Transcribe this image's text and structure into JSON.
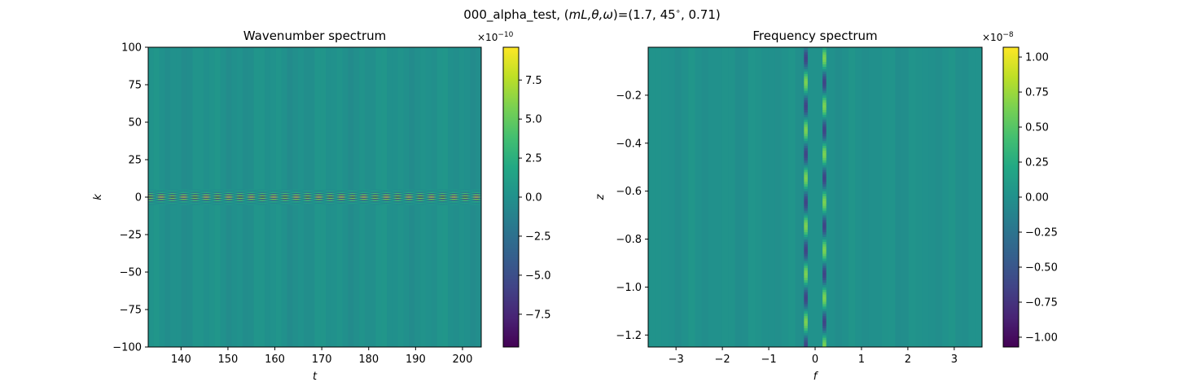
{
  "figure": {
    "suptitle": "000_alpha_test, (mL,θ,ω)=(1.7, 45°, 0.71)",
    "suptitle_prefix": "000_alpha_test, (",
    "suptitle_vars": "mL,θ,ω",
    "suptitle_suffix": ")=(1.7, 45",
    "suptitle_degree": "∘",
    "suptitle_tail": ", 0.71)"
  },
  "chart_data": [
    {
      "type": "heatmap",
      "title": "Wavenumber spectrum",
      "xlabel": "t",
      "ylabel": "k",
      "xlim": [
        133,
        204
      ],
      "ylim": [
        -100,
        100
      ],
      "xticks": [
        140,
        150,
        160,
        170,
        180,
        190,
        200
      ],
      "yticks": [
        -100,
        -75,
        -50,
        -25,
        0,
        25,
        50,
        75,
        100
      ],
      "band": {
        "center": 0,
        "halfwidth": 5,
        "period_t": 4.8,
        "stripe_k_spacing": 1.6
      },
      "colorbar": {
        "colormap": "viridis",
        "range": [
          -9.6,
          9.6
        ],
        "ticks": [
          -7.5,
          -5.0,
          -2.5,
          0.0,
          2.5,
          5.0,
          7.5
        ],
        "tick_labels": [
          "−7.5",
          "−5.0",
          "−2.5",
          "0.0",
          "2.5",
          "5.0",
          "7.5"
        ],
        "exponent_base": "×10",
        "exponent": "−10"
      }
    },
    {
      "type": "heatmap",
      "title": "Frequency spectrum",
      "xlabel": "f",
      "ylabel": "z",
      "xlim": [
        -3.6,
        3.6
      ],
      "ylim": [
        -1.25,
        0.0
      ],
      "xticks": [
        -3,
        -2,
        -1,
        0,
        1,
        2,
        3
      ],
      "yticks": [
        -1.2,
        -1.0,
        -0.8,
        -0.6,
        -0.4,
        -0.2
      ],
      "xtick_labels": [
        "−3",
        "−2",
        "−1",
        "0",
        "1",
        "2",
        "3"
      ],
      "ytick_labels": [
        "−1.2",
        "−1.0",
        "−0.8",
        "−0.6",
        "−0.4",
        "−0.2"
      ],
      "lines": {
        "f_positions": [
          -0.2,
          0.2
        ],
        "halfwidth": 0.04,
        "z_period": 0.2
      },
      "colorbar": {
        "colormap": "viridis",
        "range": [
          -1.07,
          1.07
        ],
        "ticks": [
          -1.0,
          -0.75,
          -0.5,
          -0.25,
          0.0,
          0.25,
          0.5,
          0.75,
          1.0
        ],
        "tick_labels": [
          "−1.00",
          "−0.75",
          "−0.50",
          "−0.25",
          "0.00",
          "0.25",
          "0.50",
          "0.75",
          "1.00"
        ],
        "exponent_base": "×10",
        "exponent": "−8"
      }
    }
  ]
}
